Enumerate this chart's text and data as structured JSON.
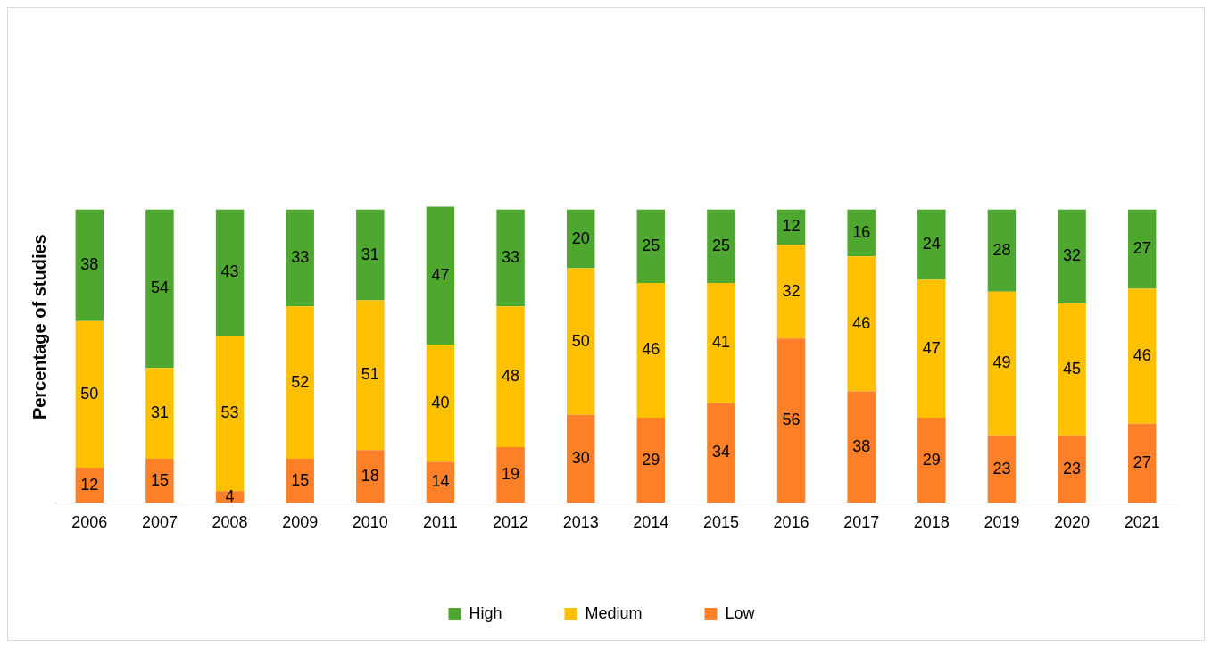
{
  "chart_data": {
    "type": "bar",
    "stacked": true,
    "ylabel": "Percentage of studies",
    "categories": [
      "2006",
      "2007",
      "2008",
      "2009",
      "2010",
      "2011",
      "2012",
      "2013",
      "2014",
      "2015",
      "2016",
      "2017",
      "2018",
      "2019",
      "2020",
      "2021"
    ],
    "series": [
      {
        "name": "Low",
        "color": "#fd7f27",
        "values": [
          12,
          15,
          4,
          15,
          18,
          14,
          19,
          30,
          29,
          34,
          56,
          38,
          29,
          23,
          23,
          27
        ]
      },
      {
        "name": "Medium",
        "color": "#ffc000",
        "values": [
          50,
          31,
          53,
          52,
          51,
          40,
          48,
          50,
          46,
          41,
          32,
          46,
          47,
          49,
          45,
          46
        ]
      },
      {
        "name": "High",
        "color": "#4ea72e",
        "values": [
          38,
          54,
          43,
          33,
          31,
          47,
          33,
          20,
          25,
          25,
          12,
          16,
          24,
          28,
          32,
          27
        ]
      }
    ],
    "tick_labels": "x",
    "grid": false,
    "legend": "bottom",
    "data_labels": true
  }
}
